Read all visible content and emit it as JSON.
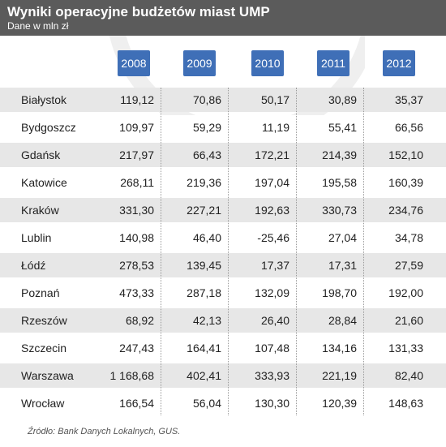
{
  "header": {
    "title": "Wyniki operacyjne budżetów miast UMP",
    "subtitle": "Dane w mln zł"
  },
  "colors": {
    "header_bg": "#5b5b5b",
    "year_badge": "#3f6fb7",
    "row_stripe": "#e7e7e7"
  },
  "chart_data": {
    "type": "table",
    "title": "Wyniki operacyjne budżetów miast UMP",
    "subtitle": "Dane w mln zł",
    "columns": [
      "2008",
      "2009",
      "2010",
      "2011",
      "2012"
    ],
    "rows": [
      {
        "city": "Białystok",
        "values": [
          "119,12",
          "70,86",
          "50,17",
          "30,89",
          "35,37"
        ]
      },
      {
        "city": "Bydgoszcz",
        "values": [
          "109,97",
          "59,29",
          "11,19",
          "55,41",
          "66,56"
        ]
      },
      {
        "city": "Gdańsk",
        "values": [
          "217,97",
          "66,43",
          "172,21",
          "214,39",
          "152,10"
        ]
      },
      {
        "city": "Katowice",
        "values": [
          "268,11",
          "219,36",
          "197,04",
          "195,58",
          "160,39"
        ]
      },
      {
        "city": "Kraków",
        "values": [
          "331,30",
          "227,21",
          "192,63",
          "330,73",
          "234,76"
        ]
      },
      {
        "city": "Lublin",
        "values": [
          "140,98",
          "46,40",
          "-25,46",
          "27,04",
          "34,78"
        ]
      },
      {
        "city": "Łódź",
        "values": [
          "278,53",
          "139,45",
          "17,37",
          "17,31",
          "27,59"
        ]
      },
      {
        "city": "Poznań",
        "values": [
          "473,33",
          "287,18",
          "132,09",
          "198,70",
          "192,00"
        ]
      },
      {
        "city": "Rzeszów",
        "values": [
          "68,92",
          "42,13",
          "26,40",
          "28,84",
          "21,60"
        ]
      },
      {
        "city": "Szczecin",
        "values": [
          "247,43",
          "164,41",
          "107,48",
          "134,16",
          "131,33"
        ]
      },
      {
        "city": "Warszawa",
        "values": [
          "1 168,68",
          "402,41",
          "333,93",
          "221,19",
          "82,40"
        ]
      },
      {
        "city": "Wrocław",
        "values": [
          "166,54",
          "56,04",
          "130,30",
          "120,39",
          "148,63"
        ]
      }
    ]
  },
  "footer": {
    "source": "Źródło: Bank Danych Lokalnych, GUS."
  }
}
